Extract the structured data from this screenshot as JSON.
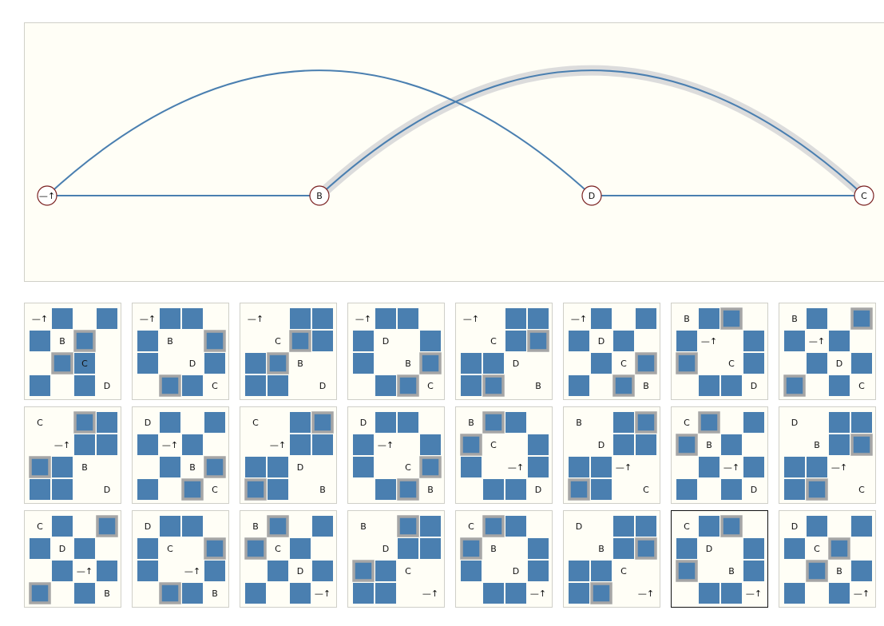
{
  "arc_diagram": {
    "nodes": [
      {
        "id": "root",
        "label": "—↑"
      },
      {
        "id": "B",
        "label": "B"
      },
      {
        "id": "D",
        "label": "D"
      },
      {
        "id": "C",
        "label": "C"
      }
    ],
    "edges": [
      {
        "from": "root",
        "to": "B",
        "shape": "line"
      },
      {
        "from": "D",
        "to": "C",
        "shape": "line"
      },
      {
        "from": "root",
        "to": "D",
        "shape": "arc"
      },
      {
        "from": "B",
        "to": "C",
        "shape": "arc",
        "highlighted": true
      }
    ],
    "colors": {
      "edge": "#4a7fb0",
      "highlight": "#dcdcdc",
      "node_stroke": "#7a2020",
      "background": "#fffef6"
    }
  },
  "thumbnails": {
    "colors": {
      "cell": "#4a7fb0",
      "ring": "#a6a6a6",
      "background": "#fffef6",
      "selected_border": "#111111"
    },
    "selected_index": 22,
    "items": [
      {
        "filled": [
          1,
          3,
          4,
          6,
          9,
          10,
          12,
          14
        ],
        "rings": [
          6,
          9
        ],
        "labels": [
          [
            0,
            "—↑"
          ],
          [
            5,
            "B"
          ],
          [
            10,
            "C"
          ],
          [
            15,
            "D"
          ]
        ]
      },
      {
        "filled": [
          1,
          2,
          4,
          7,
          8,
          11,
          13,
          14
        ],
        "rings": [
          7,
          13
        ],
        "labels": [
          [
            0,
            "—↑"
          ],
          [
            5,
            "B"
          ],
          [
            10,
            "D"
          ],
          [
            15,
            "C"
          ]
        ]
      },
      {
        "filled": [
          2,
          3,
          6,
          7,
          8,
          9,
          12,
          13
        ],
        "rings": [
          6,
          9
        ],
        "labels": [
          [
            0,
            "—↑"
          ],
          [
            5,
            "C"
          ],
          [
            10,
            "B"
          ],
          [
            15,
            "D"
          ]
        ]
      },
      {
        "filled": [
          1,
          2,
          4,
          7,
          8,
          11,
          13,
          14
        ],
        "rings": [
          11,
          14
        ],
        "labels": [
          [
            0,
            "—↑"
          ],
          [
            5,
            "D"
          ],
          [
            10,
            "B"
          ],
          [
            15,
            "C"
          ]
        ]
      },
      {
        "filled": [
          2,
          3,
          6,
          7,
          8,
          9,
          12,
          13
        ],
        "rings": [
          7,
          13
        ],
        "labels": [
          [
            0,
            "—↑"
          ],
          [
            5,
            "C"
          ],
          [
            10,
            "D"
          ],
          [
            15,
            "B"
          ]
        ]
      },
      {
        "filled": [
          1,
          3,
          4,
          6,
          9,
          11,
          12,
          14
        ],
        "rings": [
          11,
          14
        ],
        "labels": [
          [
            0,
            "—↑"
          ],
          [
            5,
            "D"
          ],
          [
            10,
            "C"
          ],
          [
            15,
            "B"
          ]
        ]
      },
      {
        "filled": [
          1,
          2,
          4,
          7,
          8,
          11,
          13,
          14
        ],
        "rings": [
          2,
          8
        ],
        "labels": [
          [
            0,
            "B"
          ],
          [
            5,
            "—↑"
          ],
          [
            10,
            "C"
          ],
          [
            15,
            "D"
          ]
        ]
      },
      {
        "filled": [
          1,
          3,
          4,
          6,
          9,
          11,
          12,
          14
        ],
        "rings": [
          3,
          12
        ],
        "labels": [
          [
            0,
            "B"
          ],
          [
            5,
            "—↑"
          ],
          [
            10,
            "D"
          ],
          [
            15,
            "C"
          ]
        ]
      },
      {
        "filled": [
          2,
          3,
          6,
          7,
          8,
          9,
          12,
          13
        ],
        "rings": [
          2,
          8
        ],
        "labels": [
          [
            0,
            "C"
          ],
          [
            5,
            "—↑"
          ],
          [
            10,
            "B"
          ],
          [
            15,
            "D"
          ]
        ]
      },
      {
        "filled": [
          1,
          3,
          4,
          6,
          9,
          11,
          12,
          14
        ],
        "rings": [
          11,
          14
        ],
        "labels": [
          [
            0,
            "D"
          ],
          [
            5,
            "—↑"
          ],
          [
            10,
            "B"
          ],
          [
            15,
            "C"
          ]
        ]
      },
      {
        "filled": [
          2,
          3,
          6,
          7,
          8,
          9,
          12,
          13
        ],
        "rings": [
          3,
          12
        ],
        "labels": [
          [
            0,
            "C"
          ],
          [
            5,
            "—↑"
          ],
          [
            10,
            "D"
          ],
          [
            15,
            "B"
          ]
        ]
      },
      {
        "filled": [
          1,
          2,
          4,
          7,
          8,
          11,
          13,
          14
        ],
        "rings": [
          11,
          14
        ],
        "labels": [
          [
            0,
            "D"
          ],
          [
            5,
            "—↑"
          ],
          [
            10,
            "C"
          ],
          [
            15,
            "B"
          ]
        ]
      },
      {
        "filled": [
          1,
          2,
          4,
          7,
          8,
          11,
          13,
          14
        ],
        "rings": [
          1,
          4
        ],
        "labels": [
          [
            0,
            "B"
          ],
          [
            5,
            "C"
          ],
          [
            10,
            "—↑"
          ],
          [
            15,
            "D"
          ]
        ]
      },
      {
        "filled": [
          2,
          3,
          6,
          7,
          8,
          9,
          12,
          13
        ],
        "rings": [
          3,
          12
        ],
        "labels": [
          [
            0,
            "B"
          ],
          [
            5,
            "D"
          ],
          [
            10,
            "—↑"
          ],
          [
            15,
            "C"
          ]
        ]
      },
      {
        "filled": [
          1,
          3,
          4,
          6,
          9,
          11,
          12,
          14
        ],
        "rings": [
          1,
          4
        ],
        "labels": [
          [
            0,
            "C"
          ],
          [
            5,
            "B"
          ],
          [
            10,
            "—↑"
          ],
          [
            15,
            "D"
          ]
        ]
      },
      {
        "filled": [
          2,
          3,
          6,
          7,
          8,
          9,
          12,
          13
        ],
        "rings": [
          7,
          13
        ],
        "labels": [
          [
            0,
            "D"
          ],
          [
            5,
            "B"
          ],
          [
            10,
            "—↑"
          ],
          [
            15,
            "C"
          ]
        ]
      },
      {
        "filled": [
          1,
          3,
          4,
          6,
          9,
          11,
          12,
          14
        ],
        "rings": [
          3,
          12
        ],
        "labels": [
          [
            0,
            "C"
          ],
          [
            5,
            "D"
          ],
          [
            10,
            "—↑"
          ],
          [
            15,
            "B"
          ]
        ]
      },
      {
        "filled": [
          1,
          2,
          4,
          7,
          8,
          11,
          13,
          14
        ],
        "rings": [
          7,
          13
        ],
        "labels": [
          [
            0,
            "D"
          ],
          [
            5,
            "C"
          ],
          [
            10,
            "—↑"
          ],
          [
            15,
            "B"
          ]
        ]
      },
      {
        "filled": [
          1,
          3,
          4,
          6,
          9,
          11,
          12,
          14
        ],
        "rings": [
          1,
          4
        ],
        "labels": [
          [
            0,
            "B"
          ],
          [
            5,
            "C"
          ],
          [
            10,
            "D"
          ],
          [
            15,
            "—↑"
          ]
        ]
      },
      {
        "filled": [
          2,
          3,
          6,
          7,
          8,
          9,
          12,
          13
        ],
        "rings": [
          2,
          8
        ],
        "labels": [
          [
            0,
            "B"
          ],
          [
            5,
            "D"
          ],
          [
            10,
            "C"
          ],
          [
            15,
            "—↑"
          ]
        ]
      },
      {
        "filled": [
          1,
          2,
          4,
          7,
          8,
          11,
          13,
          14
        ],
        "rings": [
          1,
          4
        ],
        "labels": [
          [
            0,
            "C"
          ],
          [
            5,
            "B"
          ],
          [
            10,
            "D"
          ],
          [
            15,
            "—↑"
          ]
        ]
      },
      {
        "filled": [
          2,
          3,
          6,
          7,
          8,
          9,
          12,
          13
        ],
        "rings": [
          7,
          13
        ],
        "labels": [
          [
            0,
            "D"
          ],
          [
            5,
            "B"
          ],
          [
            10,
            "C"
          ],
          [
            15,
            "—↑"
          ]
        ]
      },
      {
        "filled": [
          1,
          2,
          4,
          7,
          8,
          11,
          13,
          14
        ],
        "rings": [
          2,
          8
        ],
        "labels": [
          [
            0,
            "C"
          ],
          [
            5,
            "D"
          ],
          [
            10,
            "B"
          ],
          [
            15,
            "—↑"
          ]
        ]
      },
      {
        "filled": [
          1,
          3,
          4,
          6,
          9,
          11,
          12,
          14
        ],
        "rings": [
          6,
          9
        ],
        "labels": [
          [
            0,
            "D"
          ],
          [
            5,
            "C"
          ],
          [
            10,
            "B"
          ],
          [
            15,
            "—↑"
          ]
        ]
      }
    ]
  }
}
